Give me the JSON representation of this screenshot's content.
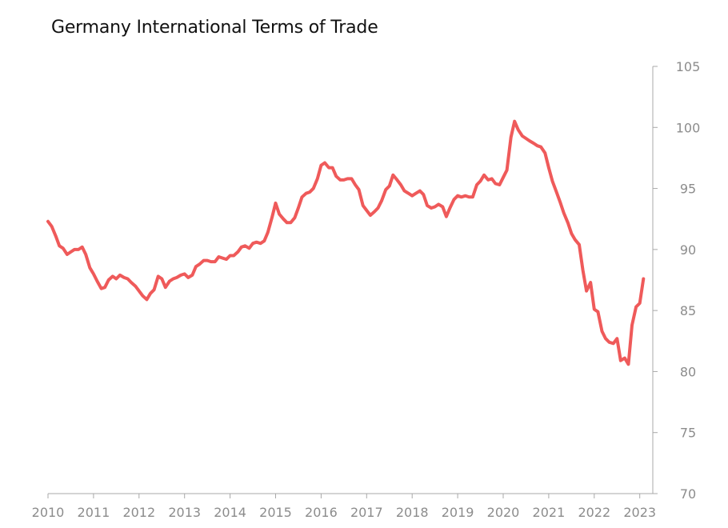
{
  "chart_data": {
    "type": "line",
    "title": "Germany International Terms of Trade",
    "xlabel": "",
    "ylabel": "",
    "xlim": [
      2010,
      2023.35
    ],
    "ylim": [
      70,
      105
    ],
    "x_ticks": [
      "2010",
      "2011",
      "2012",
      "2013",
      "2014",
      "2015",
      "2016",
      "2017",
      "2018",
      "2019",
      "2020",
      "2021",
      "2022",
      "2023"
    ],
    "y_ticks": [
      "70",
      "75",
      "80",
      "85",
      "90",
      "95",
      "100",
      "105"
    ],
    "y_axis_position": "right",
    "grid": false,
    "legend": "none",
    "series": [
      {
        "color": "#ef5a5a",
        "points": [
          [
            2010.0,
            92.3
          ],
          [
            2010.08,
            91.9
          ],
          [
            2010.17,
            91.1
          ],
          [
            2010.25,
            90.3
          ],
          [
            2010.33,
            90.1
          ],
          [
            2010.42,
            89.6
          ],
          [
            2010.5,
            89.8
          ],
          [
            2010.58,
            90.0
          ],
          [
            2010.67,
            90.0
          ],
          [
            2010.75,
            90.2
          ],
          [
            2010.83,
            89.6
          ],
          [
            2010.92,
            88.5
          ],
          [
            2011.0,
            88.0
          ],
          [
            2011.08,
            87.4
          ],
          [
            2011.17,
            86.8
          ],
          [
            2011.25,
            86.9
          ],
          [
            2011.33,
            87.5
          ],
          [
            2011.42,
            87.8
          ],
          [
            2011.5,
            87.6
          ],
          [
            2011.58,
            87.9
          ],
          [
            2011.67,
            87.7
          ],
          [
            2011.75,
            87.6
          ],
          [
            2011.83,
            87.3
          ],
          [
            2011.92,
            87.0
          ],
          [
            2012.0,
            86.6
          ],
          [
            2012.08,
            86.2
          ],
          [
            2012.17,
            85.9
          ],
          [
            2012.25,
            86.4
          ],
          [
            2012.33,
            86.7
          ],
          [
            2012.42,
            87.8
          ],
          [
            2012.5,
            87.6
          ],
          [
            2012.58,
            86.9
          ],
          [
            2012.67,
            87.4
          ],
          [
            2012.75,
            87.6
          ],
          [
            2012.83,
            87.7
          ],
          [
            2012.92,
            87.9
          ],
          [
            2013.0,
            88.0
          ],
          [
            2013.08,
            87.7
          ],
          [
            2013.17,
            87.9
          ],
          [
            2013.25,
            88.6
          ],
          [
            2013.33,
            88.8
          ],
          [
            2013.42,
            89.1
          ],
          [
            2013.5,
            89.1
          ],
          [
            2013.58,
            89.0
          ],
          [
            2013.67,
            89.0
          ],
          [
            2013.75,
            89.4
          ],
          [
            2013.83,
            89.3
          ],
          [
            2013.92,
            89.2
          ],
          [
            2014.0,
            89.5
          ],
          [
            2014.08,
            89.5
          ],
          [
            2014.17,
            89.8
          ],
          [
            2014.25,
            90.2
          ],
          [
            2014.33,
            90.3
          ],
          [
            2014.42,
            90.1
          ],
          [
            2014.5,
            90.5
          ],
          [
            2014.58,
            90.6
          ],
          [
            2014.67,
            90.5
          ],
          [
            2014.75,
            90.7
          ],
          [
            2014.83,
            91.4
          ],
          [
            2014.92,
            92.6
          ],
          [
            2015.0,
            93.8
          ],
          [
            2015.08,
            92.9
          ],
          [
            2015.17,
            92.5
          ],
          [
            2015.25,
            92.2
          ],
          [
            2015.33,
            92.2
          ],
          [
            2015.42,
            92.6
          ],
          [
            2015.5,
            93.4
          ],
          [
            2015.58,
            94.3
          ],
          [
            2015.67,
            94.6
          ],
          [
            2015.75,
            94.7
          ],
          [
            2015.83,
            95.0
          ],
          [
            2015.92,
            95.8
          ],
          [
            2016.0,
            96.9
          ],
          [
            2016.08,
            97.1
          ],
          [
            2016.17,
            96.7
          ],
          [
            2016.25,
            96.7
          ],
          [
            2016.33,
            96.0
          ],
          [
            2016.42,
            95.7
          ],
          [
            2016.5,
            95.7
          ],
          [
            2016.58,
            95.8
          ],
          [
            2016.67,
            95.8
          ],
          [
            2016.75,
            95.3
          ],
          [
            2016.83,
            94.9
          ],
          [
            2016.92,
            93.6
          ],
          [
            2017.0,
            93.2
          ],
          [
            2017.08,
            92.8
          ],
          [
            2017.17,
            93.1
          ],
          [
            2017.25,
            93.4
          ],
          [
            2017.33,
            94.0
          ],
          [
            2017.42,
            94.9
          ],
          [
            2017.5,
            95.2
          ],
          [
            2017.58,
            96.1
          ],
          [
            2017.67,
            95.7
          ],
          [
            2017.75,
            95.3
          ],
          [
            2017.83,
            94.8
          ],
          [
            2017.92,
            94.6
          ],
          [
            2018.0,
            94.4
          ],
          [
            2018.08,
            94.6
          ],
          [
            2018.17,
            94.8
          ],
          [
            2018.25,
            94.5
          ],
          [
            2018.33,
            93.6
          ],
          [
            2018.42,
            93.4
          ],
          [
            2018.5,
            93.5
          ],
          [
            2018.58,
            93.7
          ],
          [
            2018.67,
            93.5
          ],
          [
            2018.75,
            92.7
          ],
          [
            2018.83,
            93.4
          ],
          [
            2018.92,
            94.1
          ],
          [
            2019.0,
            94.4
          ],
          [
            2019.08,
            94.3
          ],
          [
            2019.17,
            94.4
          ],
          [
            2019.25,
            94.3
          ],
          [
            2019.33,
            94.3
          ],
          [
            2019.42,
            95.3
          ],
          [
            2019.5,
            95.6
          ],
          [
            2019.58,
            96.1
          ],
          [
            2019.67,
            95.7
          ],
          [
            2019.75,
            95.8
          ],
          [
            2019.83,
            95.4
          ],
          [
            2019.92,
            95.3
          ],
          [
            2020.0,
            95.9
          ],
          [
            2020.08,
            96.5
          ],
          [
            2020.17,
            99.2
          ],
          [
            2020.25,
            100.5
          ],
          [
            2020.33,
            99.8
          ],
          [
            2020.42,
            99.3
          ],
          [
            2020.5,
            99.1
          ],
          [
            2020.58,
            98.9
          ],
          [
            2020.67,
            98.7
          ],
          [
            2020.75,
            98.5
          ],
          [
            2020.83,
            98.4
          ],
          [
            2020.92,
            97.9
          ],
          [
            2021.0,
            96.7
          ],
          [
            2021.08,
            95.6
          ],
          [
            2021.17,
            94.7
          ],
          [
            2021.25,
            93.9
          ],
          [
            2021.33,
            93.0
          ],
          [
            2021.42,
            92.2
          ],
          [
            2021.5,
            91.3
          ],
          [
            2021.58,
            90.8
          ],
          [
            2021.67,
            90.4
          ],
          [
            2021.75,
            88.3
          ],
          [
            2021.83,
            86.6
          ],
          [
            2021.92,
            87.3
          ],
          [
            2022.0,
            85.1
          ],
          [
            2022.08,
            84.9
          ],
          [
            2022.17,
            83.3
          ],
          [
            2022.25,
            82.7
          ],
          [
            2022.33,
            82.4
          ],
          [
            2022.42,
            82.3
          ],
          [
            2022.5,
            82.7
          ],
          [
            2022.58,
            80.9
          ],
          [
            2022.67,
            81.1
          ],
          [
            2022.75,
            80.6
          ],
          [
            2022.83,
            83.8
          ],
          [
            2022.92,
            85.3
          ],
          [
            2023.0,
            85.6
          ],
          [
            2023.08,
            87.6
          ]
        ]
      }
    ]
  }
}
